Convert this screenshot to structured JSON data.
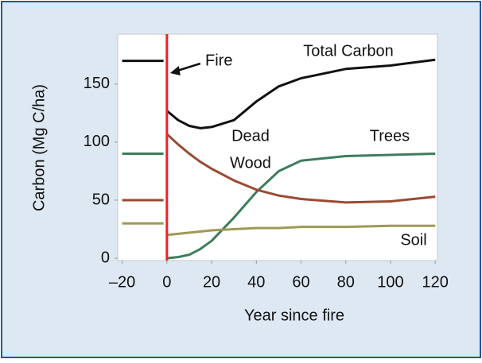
{
  "chart_data": {
    "type": "line",
    "xlabel": "Year since fire",
    "ylabel": "Carbon (Mg C/ha)",
    "x": [
      -20,
      -1.5,
      -1,
      0,
      5,
      10,
      15,
      20,
      30,
      40,
      50,
      60,
      80,
      100,
      120
    ],
    "series": [
      {
        "name": "Total Carbon",
        "color": "#111111",
        "values": [
          170,
          170,
          null,
          127,
          119,
          114,
          112,
          113,
          119,
          135,
          148,
          155,
          163,
          166,
          171
        ]
      },
      {
        "name": "Trees",
        "color": "#3d7d5c",
        "values": [
          90,
          90,
          null,
          0,
          1,
          3,
          8,
          15,
          35,
          57,
          75,
          84,
          88,
          89,
          90
        ]
      },
      {
        "name": "Dead Wood",
        "color": "#9a4a33",
        "values": [
          50,
          50,
          null,
          107,
          98,
          90,
          83,
          77,
          67,
          59,
          54,
          51,
          48,
          49,
          53
        ]
      },
      {
        "name": "Soil",
        "color": "#9d9a55",
        "values": [
          30,
          30,
          null,
          20,
          21,
          22,
          23,
          24,
          25,
          26,
          26,
          27,
          27,
          28,
          28
        ]
      }
    ],
    "annotations": [
      "Fire",
      "Total Carbon",
      "Dead",
      "Wood",
      "Trees",
      "Soil"
    ],
    "fire_color": "#ee2222",
    "xlim": [
      -22,
      121
    ],
    "ylim": [
      -2,
      193
    ],
    "xticks": [
      {
        "value": -20,
        "label": "–20"
      },
      0,
      20,
      40,
      60,
      80,
      100,
      120
    ],
    "yticks": [
      0,
      50,
      100,
      150
    ],
    "grid": false
  }
}
